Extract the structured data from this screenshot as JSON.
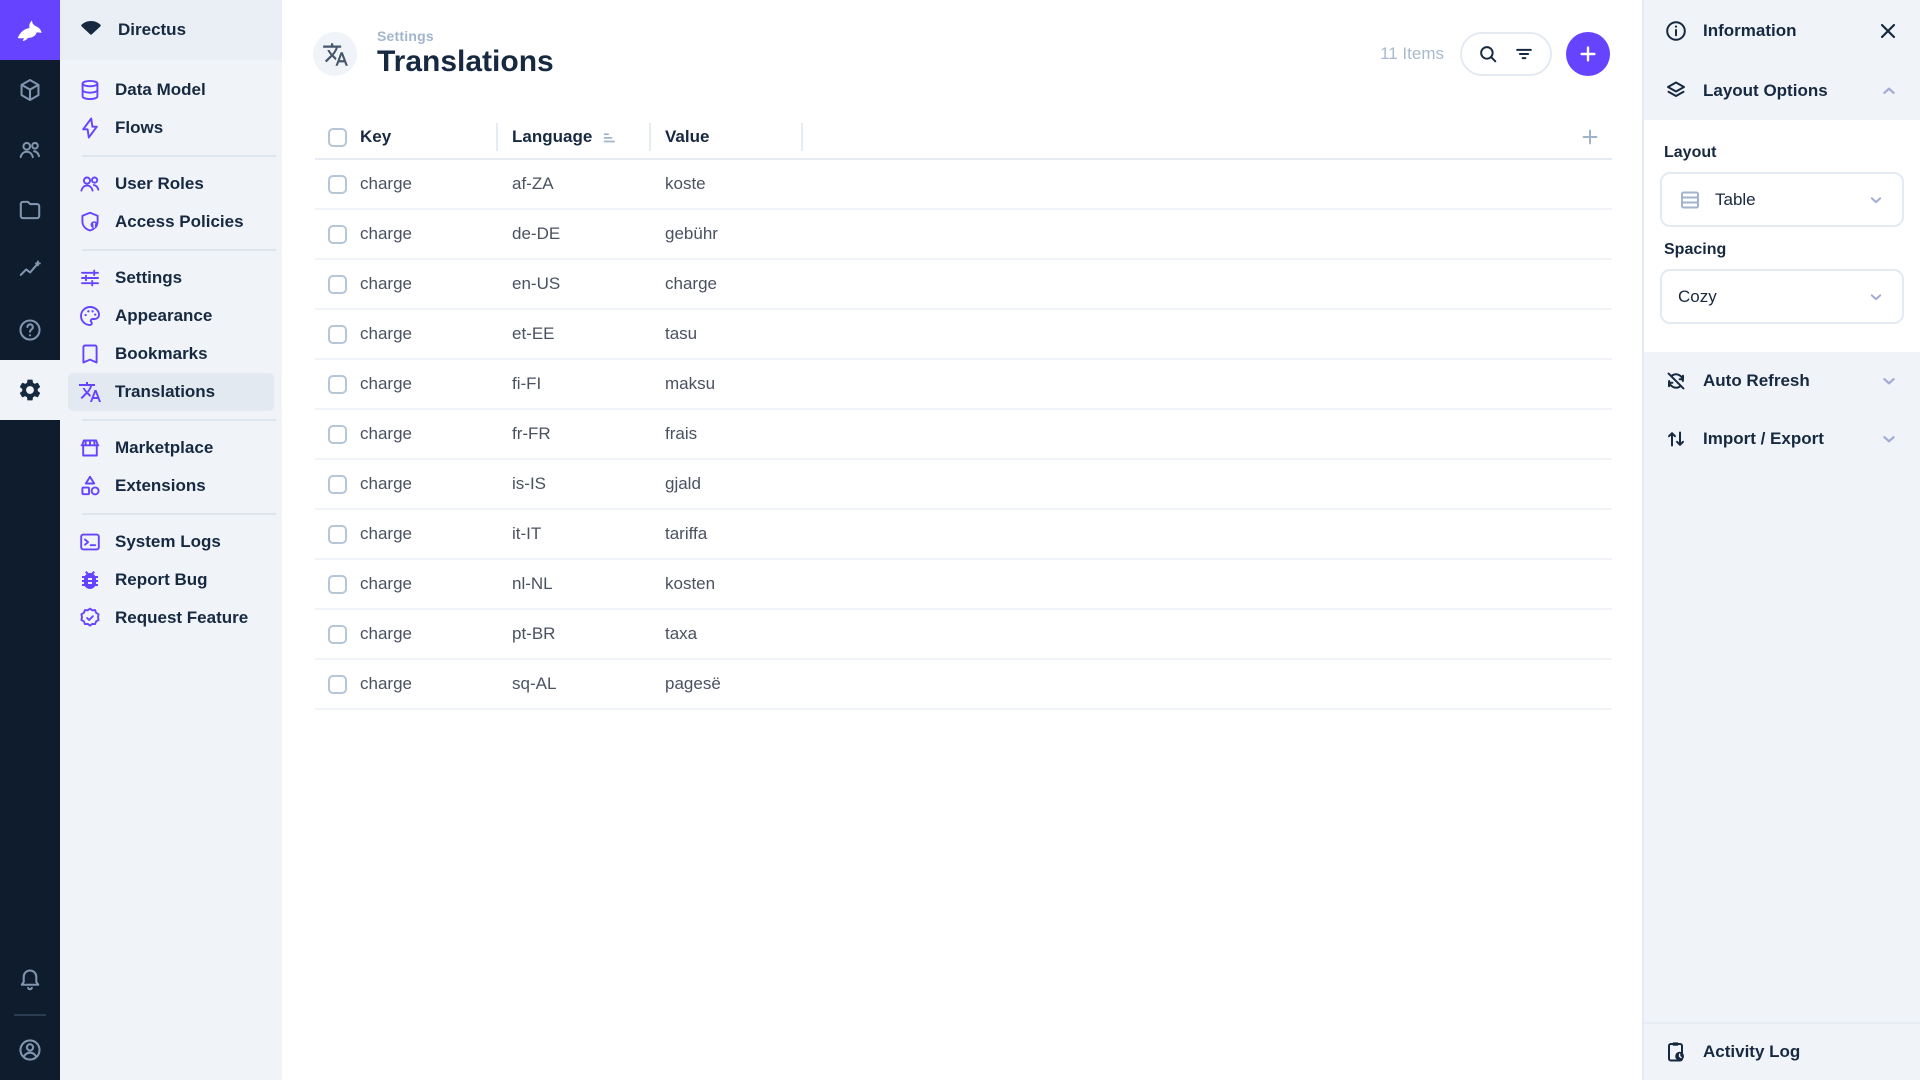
{
  "app": {
    "accent_color": "#6644ff",
    "module_bar_color": "#0e1c2e",
    "nav_bg_color": "#f0f4f9",
    "text_color": "#172940"
  },
  "module_bar": {
    "logo_icon": "directus-rabbit-icon",
    "modules": [
      {
        "name": "content",
        "icon": "box"
      },
      {
        "name": "users",
        "icon": "people"
      },
      {
        "name": "files",
        "icon": "folder"
      },
      {
        "name": "insights",
        "icon": "insights"
      },
      {
        "name": "help",
        "icon": "help"
      },
      {
        "name": "settings",
        "icon": "gear",
        "active": true
      }
    ],
    "bottom": [
      {
        "name": "notifications",
        "icon": "bell"
      },
      {
        "name": "account",
        "icon": "account"
      }
    ]
  },
  "nav": {
    "project_name": "Directus",
    "items": [
      {
        "label": "Data Model",
        "icon": "database"
      },
      {
        "label": "Flows",
        "icon": "bolt"
      },
      {
        "divider": true
      },
      {
        "label": "User Roles",
        "icon": "people2"
      },
      {
        "label": "Access Policies",
        "icon": "shield"
      },
      {
        "divider": true
      },
      {
        "label": "Settings",
        "icon": "tune"
      },
      {
        "label": "Appearance",
        "icon": "palette"
      },
      {
        "label": "Bookmarks",
        "icon": "bookmark"
      },
      {
        "label": "Translations",
        "icon": "translate",
        "active": true
      },
      {
        "divider": true
      },
      {
        "label": "Marketplace",
        "icon": "storefront"
      },
      {
        "label": "Extensions",
        "icon": "category"
      },
      {
        "divider": true
      },
      {
        "label": "System Logs",
        "icon": "terminal"
      },
      {
        "label": "Report Bug",
        "icon": "bug"
      },
      {
        "label": "Request Feature",
        "icon": "badge"
      }
    ]
  },
  "page_header": {
    "breadcrumb": "Settings",
    "title": "Translations",
    "title_icon": "translate",
    "item_count": "11 Items"
  },
  "table": {
    "columns": [
      {
        "label": "Key"
      },
      {
        "label": "Language",
        "sorted": true
      },
      {
        "label": "Value"
      }
    ],
    "rows": [
      {
        "key": "charge",
        "language": "af-ZA",
        "value": "koste"
      },
      {
        "key": "charge",
        "language": "de-DE",
        "value": "gebühr"
      },
      {
        "key": "charge",
        "language": "en-US",
        "value": "charge"
      },
      {
        "key": "charge",
        "language": "et-EE",
        "value": "tasu"
      },
      {
        "key": "charge",
        "language": "fi-FI",
        "value": "maksu"
      },
      {
        "key": "charge",
        "language": "fr-FR",
        "value": "frais"
      },
      {
        "key": "charge",
        "language": "is-IS",
        "value": "gjald"
      },
      {
        "key": "charge",
        "language": "it-IT",
        "value": "tariffa"
      },
      {
        "key": "charge",
        "language": "nl-NL",
        "value": "kosten"
      },
      {
        "key": "charge",
        "language": "pt-BR",
        "value": "taxa"
      },
      {
        "key": "charge",
        "language": "sq-AL",
        "value": "pagesë"
      }
    ]
  },
  "sidebar": {
    "title": "Information",
    "layout_options": {
      "label": "Layout Options",
      "expanded": true,
      "layout_label": "Layout",
      "layout_value": "Table",
      "spacing_label": "Spacing",
      "spacing_value": "Cozy"
    },
    "auto_refresh_label": "Auto Refresh",
    "import_export_label": "Import / Export",
    "activity_log_label": "Activity Log"
  }
}
